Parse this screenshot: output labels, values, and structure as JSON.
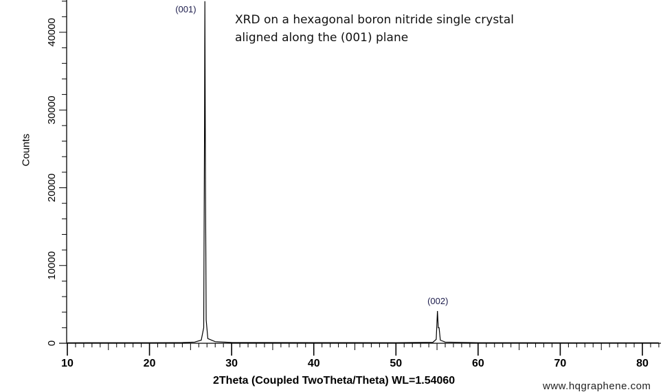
{
  "chart_data": {
    "type": "line",
    "title": "",
    "annotation_lines": [
      "XRD on a hexagonal boron nitride single crystal",
      "aligned along the (001) plane"
    ],
    "xlabel": "2Theta (Coupled TwoTheta/Theta) WL=1.54060",
    "ylabel": "Counts",
    "xlim": [
      10,
      82
    ],
    "ylim": [
      0,
      44000
    ],
    "xticks": [
      10,
      20,
      30,
      40,
      50,
      60,
      70,
      80
    ],
    "yticks": [
      0,
      10000,
      20000,
      30000,
      40000
    ],
    "grid": false,
    "line_color": "#000000",
    "peaks": [
      {
        "label": "(001)",
        "x": 26.76,
        "y": 44000
      },
      {
        "label": "(002)",
        "x": 55.1,
        "y": 4150
      }
    ],
    "points": [
      [
        10,
        60
      ],
      [
        20,
        70
      ],
      [
        24,
        90
      ],
      [
        25.5,
        150
      ],
      [
        26.3,
        400
      ],
      [
        26.6,
        2000
      ],
      [
        26.7,
        28000
      ],
      [
        26.74,
        44000
      ],
      [
        26.78,
        33000
      ],
      [
        26.82,
        20000
      ],
      [
        26.9,
        3000
      ],
      [
        27.1,
        600
      ],
      [
        28,
        200
      ],
      [
        30,
        100
      ],
      [
        40,
        80
      ],
      [
        50,
        70
      ],
      [
        54.5,
        120
      ],
      [
        54.9,
        500
      ],
      [
        55.05,
        4150
      ],
      [
        55.15,
        2000
      ],
      [
        55.25,
        2000
      ],
      [
        55.4,
        400
      ],
      [
        56,
        150
      ],
      [
        60,
        70
      ],
      [
        70,
        60
      ],
      [
        82,
        60
      ]
    ]
  },
  "watermark": "www.hqgraphene.com"
}
